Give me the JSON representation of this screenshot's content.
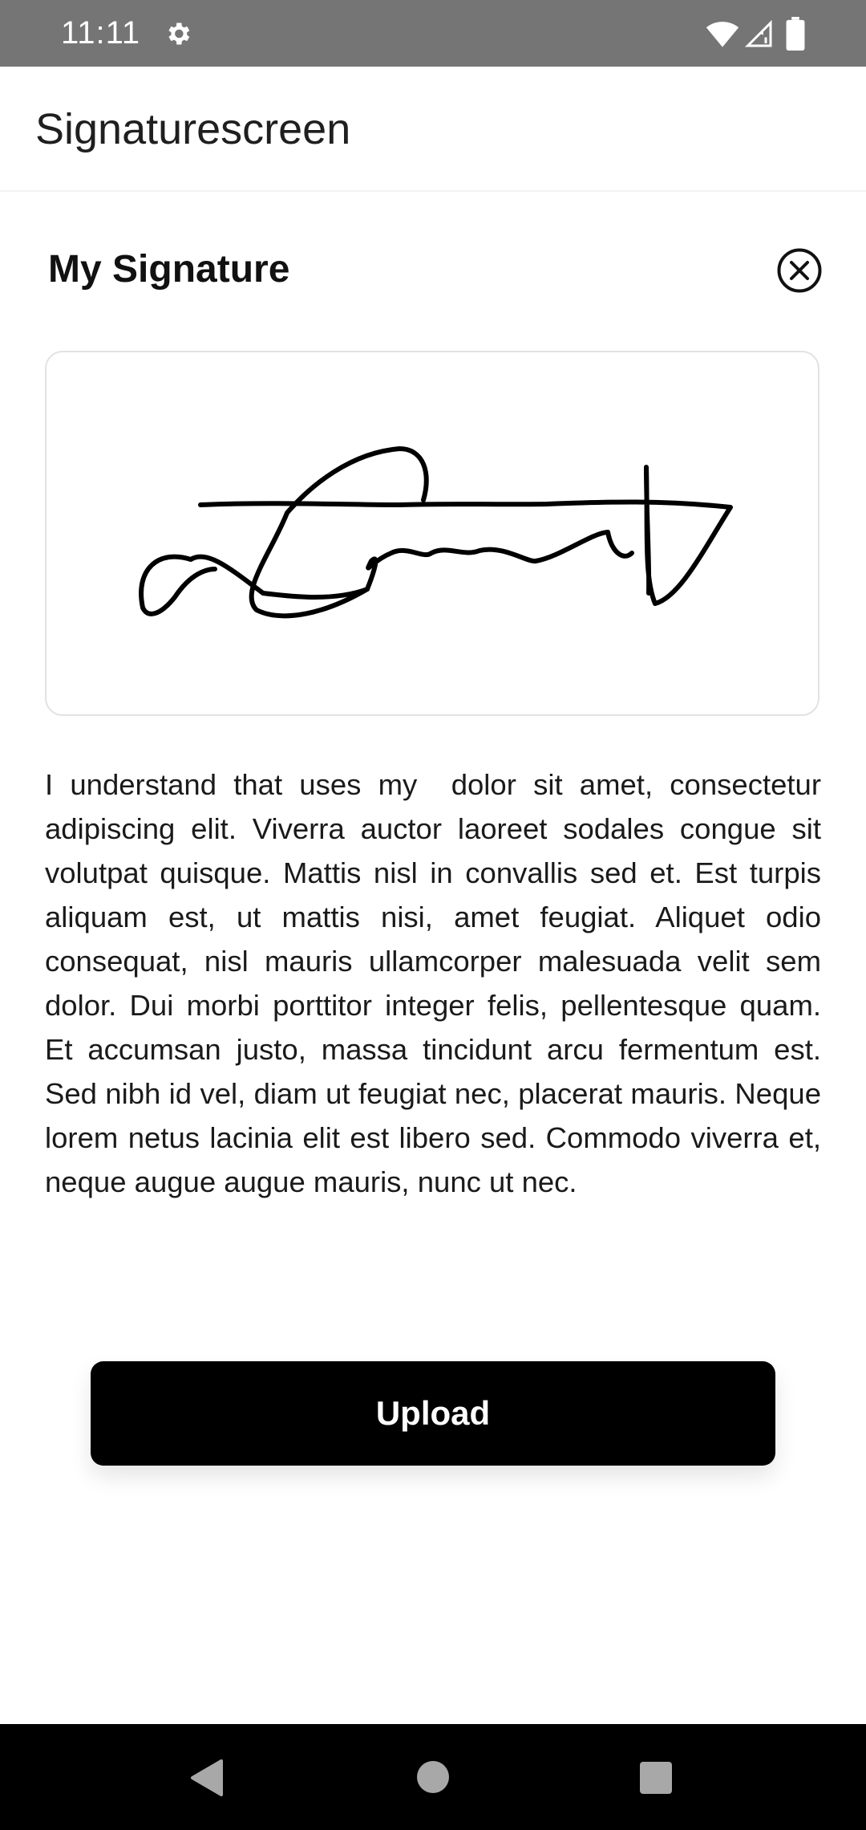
{
  "status_bar": {
    "time": "11:11",
    "icons": [
      "gear-icon",
      "wifi-icon",
      "signal-icon",
      "battery-icon"
    ]
  },
  "app_bar": {
    "title": "Signaturescreen"
  },
  "signature_card": {
    "title": "My Signature",
    "close_icon": "close-circle-icon",
    "signature_pad": {
      "has_signature": true,
      "stroke_color": "#000000",
      "border_color": "#e2e2e2"
    }
  },
  "consent_text": "I understand that uses my  dolor sit amet, consectetur adipiscing elit. Viverra auctor laoreet sodales congue sit volutpat quisque. Mattis nisl in convallis sed et. Est turpis aliquam est, ut mattis nisi, amet feugiat. Aliquet odio consequat, nisl mauris ullamcorper malesuada velit sem dolor. Dui morbi porttitor integer felis, pellentesque quam. Et accumsan justo, massa tincidunt arcu fermentum est. Sed nibh id vel, diam ut feugiat nec, placerat mauris. Neque lorem netus lacinia elit est libero sed. Commodo viverra et, neque augue augue mauris, nunc ut nec.",
  "upload_button": {
    "label": "Upload",
    "background": "#000000",
    "text_color": "#ffffff"
  },
  "nav_bar": {
    "icons": [
      "back-icon",
      "home-icon",
      "recents-icon"
    ]
  }
}
